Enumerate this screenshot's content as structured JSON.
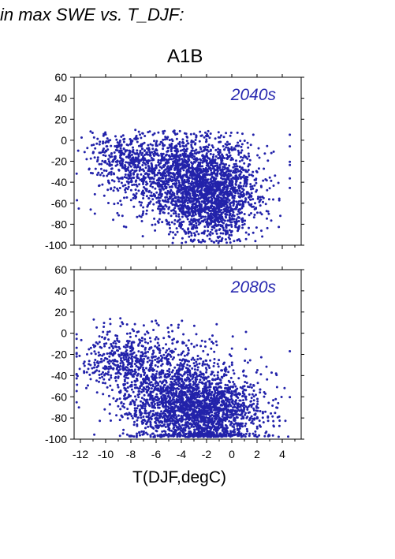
{
  "figure": {
    "title": "in max SWE vs. T_DJF:",
    "scenario": "A1B",
    "xlabel": "T(DJF,degC)"
  },
  "colors": {
    "points": "#2222aa",
    "label": "#2a2ab0",
    "axis": "#000000"
  },
  "chart_data": [
    {
      "type": "scatter",
      "annotation": "2040s",
      "xlim": [
        -12.5,
        5.5
      ],
      "ylim": [
        -100,
        60
      ],
      "yticks": [
        60,
        40,
        20,
        0,
        -20,
        -40,
        -60,
        -80,
        -100
      ],
      "grid": false,
      "approx_points": 3000,
      "clusters": [
        {
          "x_mean": -3.5,
          "x_sd": 2.6,
          "y_mean": -35,
          "y_sd": 20,
          "weight": 0.55
        },
        {
          "x_mean": -1.5,
          "x_sd": 1.8,
          "y_mean": -60,
          "y_sd": 18,
          "weight": 0.35
        },
        {
          "x_mean": -8.5,
          "x_sd": 1.5,
          "y_mean": -15,
          "y_sd": 12,
          "weight": 0.1
        }
      ],
      "y_upper_bound_approx": 10
    },
    {
      "type": "scatter",
      "annotation": "2080s",
      "xlim": [
        -12.5,
        5.5
      ],
      "ylim": [
        -100,
        60
      ],
      "xticks": [
        -12,
        -10,
        -8,
        -6,
        -4,
        -2,
        0,
        2,
        4
      ],
      "yticks": [
        60,
        40,
        20,
        0,
        -20,
        -40,
        -60,
        -80,
        -100
      ],
      "grid": false,
      "approx_points": 3000,
      "clusters": [
        {
          "x_mean": -2.5,
          "x_sd": 2.4,
          "y_mean": -75,
          "y_sd": 18,
          "weight": 0.6
        },
        {
          "x_mean": -5.0,
          "x_sd": 2.6,
          "y_mean": -45,
          "y_sd": 22,
          "weight": 0.3
        },
        {
          "x_mean": -9.0,
          "x_sd": 1.6,
          "y_mean": -25,
          "y_sd": 15,
          "weight": 0.1
        }
      ],
      "y_upper_bound_approx": 15
    }
  ]
}
